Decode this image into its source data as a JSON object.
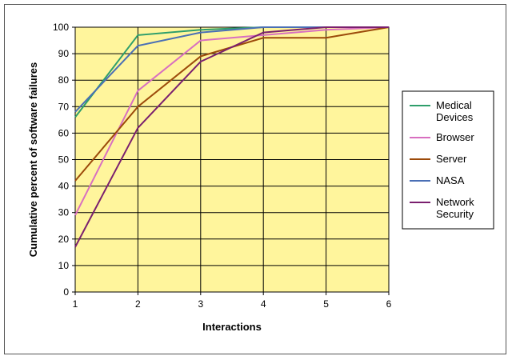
{
  "chart_data": {
    "type": "line",
    "title": "",
    "xlabel": "Interactions",
    "ylabel": "Cumulative percent of software failures",
    "x": [
      1,
      2,
      3,
      4,
      5,
      6
    ],
    "xlim": [
      1,
      6
    ],
    "ylim": [
      0,
      100
    ],
    "yticks": [
      0,
      10,
      20,
      30,
      40,
      50,
      60,
      70,
      80,
      90,
      100
    ],
    "xticks": [
      1,
      2,
      3,
      4,
      5,
      6
    ],
    "grid": true,
    "plot_background": "#FFF59C",
    "legend_position": "right",
    "series": [
      {
        "name": "Medical Devices",
        "color": "#2E9E6B",
        "values": [
          66,
          97,
          99,
          100,
          100,
          100
        ]
      },
      {
        "name": "Browser",
        "color": "#D86FC0",
        "values": [
          29,
          76,
          95,
          97,
          99,
          100
        ]
      },
      {
        "name": "Server",
        "color": "#9C4A0A",
        "values": [
          42,
          70,
          89,
          96,
          96,
          100
        ]
      },
      {
        "name": "NASA",
        "color": "#4A6FB5",
        "values": [
          68,
          93,
          98,
          100,
          100,
          100
        ]
      },
      {
        "name": "Network Security",
        "color": "#7A1F6E",
        "values": [
          17,
          62,
          87,
          98,
          100,
          100
        ]
      }
    ]
  }
}
